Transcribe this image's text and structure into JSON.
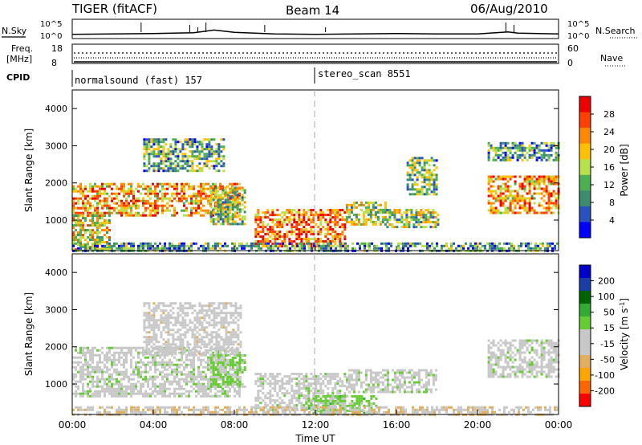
{
  "header": {
    "station": "TIGER (fitACF)",
    "beam": "Beam 14",
    "date": "06/Aug/2010"
  },
  "nsky_panel": {
    "left_label": "N.Sky",
    "right_label": "N.Search",
    "tick_top": "10^5",
    "tick_bottom": "10^0",
    "right_tick_top": "10^5",
    "right_tick_bottom": "10^0"
  },
  "freq_panel": {
    "left_label_1": "Freq.",
    "left_label_2": "[MHz]",
    "right_label": "Nave",
    "left_ticks": [
      "18",
      "8"
    ],
    "right_ticks": [
      "60",
      "0"
    ]
  },
  "cpid": {
    "label": "CPID",
    "modes": [
      {
        "name": "normalsound (fast) 157",
        "start_hour": 0,
        "end_hour": 12
      },
      {
        "name": "stereo_scan 8551",
        "start_hour": 12,
        "end_hour": 24
      }
    ]
  },
  "x_axis": {
    "label": "Time UT",
    "ticks": [
      "00:00",
      "04:00",
      "08:00",
      "12:00",
      "16:00",
      "20:00",
      "00:00"
    ],
    "range_hours": [
      0,
      24
    ]
  },
  "power_panel": {
    "ylabel": "Slant Range [km]",
    "yticks": [
      "4000",
      "3000",
      "2000",
      "1000"
    ],
    "colorbar_label": "Power [dB]",
    "colorbar_ticks": [
      "28",
      "24",
      "20",
      "16",
      "12",
      "8",
      "4"
    ]
  },
  "velocity_panel": {
    "ylabel": "Slant Range [km]",
    "yticks": [
      "4000",
      "3000",
      "2000",
      "1000"
    ],
    "colorbar_label": "Velocity [m s",
    "colorbar_label_sup": "-1",
    "colorbar_label_end": "]",
    "colorbar_ticks": [
      "200",
      "100",
      "50",
      "15",
      "-15",
      "-50",
      "-100",
      "-200"
    ]
  },
  "chart_data": [
    {
      "type": "line",
      "name": "N.Sky",
      "x_hours": [
        0,
        2,
        4,
        6,
        7,
        8,
        10,
        12,
        14,
        16,
        18,
        20,
        21.5,
        22,
        24
      ],
      "values_log10": [
        1.1,
        1.2,
        1.3,
        1.5,
        2.2,
        1.6,
        1.2,
        1.1,
        1.2,
        1.3,
        1.2,
        1.2,
        1.7,
        1.4,
        1.2
      ],
      "ylim_log10": [
        0,
        5
      ]
    },
    {
      "type": "heatmap",
      "quantity": "Power",
      "units": "dB",
      "xlim_hours": [
        0,
        24
      ],
      "ylim_km": [
        180,
        4500
      ],
      "clim": [
        0,
        32
      ],
      "regions": [
        {
          "t": [
            0,
            8.2
          ],
          "r": [
            1150,
            2000
          ],
          "level": 22
        },
        {
          "t": [
            0,
            1.8
          ],
          "r": [
            200,
            1150
          ],
          "level": 18
        },
        {
          "t": [
            3.5,
            7.5
          ],
          "r": [
            2300,
            3200
          ],
          "level": 12
        },
        {
          "t": [
            6.8,
            8.5
          ],
          "r": [
            900,
            1900
          ],
          "level": 14
        },
        {
          "t": [
            9,
            13.5
          ],
          "r": [
            300,
            1300
          ],
          "level": 24
        },
        {
          "t": [
            13.5,
            15.5
          ],
          "r": [
            900,
            1500
          ],
          "level": 16
        },
        {
          "t": [
            15.5,
            18
          ],
          "r": [
            800,
            1300
          ],
          "level": 14
        },
        {
          "t": [
            16.5,
            18
          ],
          "r": [
            1700,
            2700
          ],
          "level": 12
        },
        {
          "t": [
            20.5,
            24
          ],
          "r": [
            1200,
            2200
          ],
          "level": 22
        },
        {
          "t": [
            20.5,
            24
          ],
          "r": [
            2600,
            3100
          ],
          "level": 10
        },
        {
          "t": [
            0,
            24
          ],
          "r": [
            200,
            400
          ],
          "level": 10
        }
      ]
    },
    {
      "type": "heatmap",
      "quantity": "Velocity",
      "units": "m s-1",
      "xlim_hours": [
        0,
        24
      ],
      "ylim_km": [
        180,
        4500
      ],
      "clim": [
        -250,
        250
      ],
      "regions": [
        {
          "t": [
            0,
            8.2
          ],
          "r": [
            700,
            2000
          ],
          "level": 0
        },
        {
          "t": [
            3.5,
            8.3
          ],
          "r": [
            1800,
            3200
          ],
          "level": -40
        },
        {
          "t": [
            6.8,
            8.5
          ],
          "r": [
            900,
            1800
          ],
          "level": 30
        },
        {
          "t": [
            9,
            13.5
          ],
          "r": [
            300,
            1300
          ],
          "level": 0
        },
        {
          "t": [
            11.5,
            15
          ],
          "r": [
            200,
            700
          ],
          "level": 40
        },
        {
          "t": [
            13.5,
            18
          ],
          "r": [
            800,
            1400
          ],
          "level": 0
        },
        {
          "t": [
            20.5,
            24
          ],
          "r": [
            1200,
            2200
          ],
          "level": 0
        },
        {
          "t": [
            0,
            24
          ],
          "r": [
            200,
            400
          ],
          "level": -60
        }
      ]
    }
  ],
  "colors": {
    "power_scale": [
      "#0000ff",
      "#2a52be",
      "#3c8c6e",
      "#4caf50",
      "#b8e04a",
      "#ffc000",
      "#ff8800",
      "#ff4000",
      "#ee0000"
    ],
    "velocity_scale": [
      "#ff0000",
      "#ff6600",
      "#ffa500",
      "#e0b060",
      "#c8c8c8",
      "#c8c8c8",
      "#66cc33",
      "#33aa33",
      "#006400",
      "#1a3da8",
      "#0000cc"
    ]
  }
}
